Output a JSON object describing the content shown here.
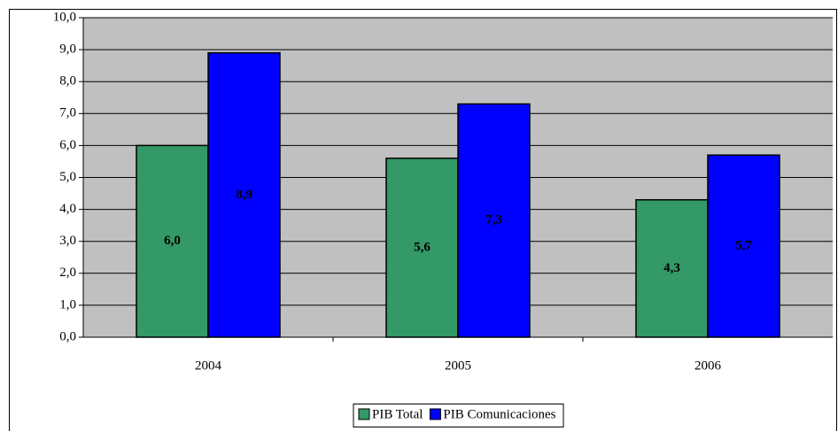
{
  "chart_data": {
    "type": "bar",
    "categories": [
      "2004",
      "2005",
      "2006"
    ],
    "series": [
      {
        "name": "PIB Total",
        "color": "#339966",
        "values": [
          6.0,
          5.6,
          4.3
        ],
        "value_labels": [
          "6,0",
          "5,6",
          "4,3"
        ]
      },
      {
        "name": "PIB Comunicaciones",
        "color": "#0000ff",
        "values": [
          8.9,
          7.3,
          5.7
        ],
        "value_labels": [
          "8,9",
          "7,3",
          "5,7"
        ]
      }
    ],
    "ylim": [
      0,
      10
    ],
    "yticks": [
      {
        "value": 0,
        "label": "0,0"
      },
      {
        "value": 1,
        "label": "1,0"
      },
      {
        "value": 2,
        "label": "2,0"
      },
      {
        "value": 3,
        "label": "3,0"
      },
      {
        "value": 4,
        "label": "4,0"
      },
      {
        "value": 5,
        "label": "5,0"
      },
      {
        "value": 6,
        "label": "6,0"
      },
      {
        "value": 7,
        "label": "7,0"
      },
      {
        "value": 8,
        "label": "8,0"
      },
      {
        "value": 9,
        "label": "9,0"
      },
      {
        "value": 10,
        "label": "10,0"
      }
    ],
    "grid": true,
    "legend": "bottom"
  }
}
